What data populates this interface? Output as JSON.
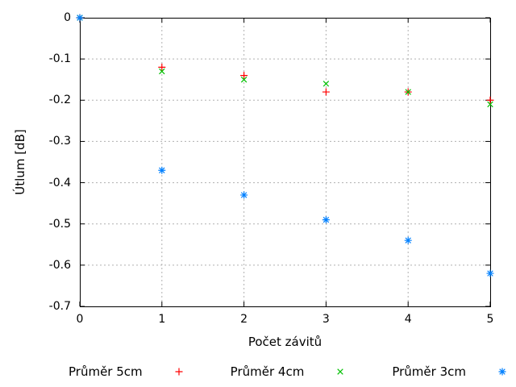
{
  "chart_data": {
    "type": "scatter",
    "title": "",
    "xlabel": "Počet závitů",
    "ylabel": "Útlum [dB]",
    "xlim": [
      0,
      5
    ],
    "ylim": [
      -0.7,
      0
    ],
    "xticks": [
      0,
      1,
      2,
      3,
      4,
      5
    ],
    "xtick_labels": [
      "0",
      "1",
      "2",
      "3",
      "4",
      "5"
    ],
    "yticks": [
      0,
      -0.1,
      -0.2,
      -0.3,
      -0.4,
      -0.5,
      -0.6,
      -0.7
    ],
    "ytick_labels": [
      "0",
      "-0.1",
      "-0.2",
      "-0.3",
      "-0.4",
      "-0.5",
      "-0.6",
      "-0.7"
    ],
    "grid": true,
    "legend_position": "below-plot",
    "background_color": "#ffffff",
    "grid_color": "#b0b0b0",
    "axis_color": "#000000",
    "x": [
      0,
      1,
      2,
      3,
      4,
      5
    ],
    "series": [
      {
        "name": "Průměr 5cm",
        "marker": "plus",
        "color": "#ff0000",
        "values": [
          0,
          -0.12,
          -0.14,
          -0.18,
          -0.18,
          -0.2
        ]
      },
      {
        "name": "Průměr 4cm",
        "marker": "cross",
        "color": "#00c000",
        "values": [
          0,
          -0.13,
          -0.15,
          -0.16,
          -0.18,
          -0.21
        ]
      },
      {
        "name": "Průměr 3cm",
        "marker": "asterisk",
        "color": "#0080ff",
        "values": [
          0,
          -0.37,
          -0.43,
          -0.49,
          -0.54,
          -0.62
        ]
      }
    ]
  }
}
